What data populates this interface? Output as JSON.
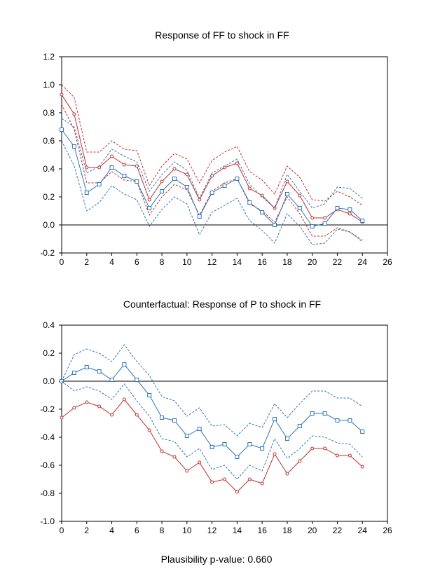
{
  "chart_data": [
    {
      "type": "line",
      "title": "Response of FF to shock in FF",
      "xlim": [
        0,
        26
      ],
      "ylim": [
        -0.2,
        1.2
      ],
      "xticks": [
        0,
        2,
        4,
        6,
        8,
        10,
        12,
        14,
        16,
        18,
        20,
        22,
        24,
        26
      ],
      "yticks": [
        -0.2,
        0.0,
        0.2,
        0.4,
        0.6,
        0.8,
        1.0,
        1.2
      ],
      "ytick_labels": [
        "-0.2",
        "0.0",
        "0.2",
        "0.4",
        "0.6",
        "0.8",
        "1.0",
        "1.2"
      ],
      "zero_line": true,
      "grid": false,
      "x": [
        0,
        1,
        2,
        3,
        4,
        5,
        6,
        7,
        8,
        9,
        10,
        11,
        12,
        13,
        14,
        15,
        16,
        17,
        18,
        19,
        20,
        21,
        22,
        23,
        24
      ],
      "series": [
        {
          "color": "#c0302e",
          "style": "dashed",
          "marker": "none",
          "values": [
            1.0,
            0.91,
            0.52,
            0.52,
            0.6,
            0.54,
            0.53,
            0.28,
            0.42,
            0.51,
            0.47,
            0.3,
            0.46,
            0.52,
            0.56,
            0.38,
            0.32,
            0.22,
            0.42,
            0.34,
            0.18,
            0.17,
            0.24,
            0.2,
            0.14
          ]
        },
        {
          "color": "#c0302e",
          "style": "solid",
          "marker": "circle",
          "values": [
            0.93,
            0.79,
            0.41,
            0.41,
            0.49,
            0.43,
            0.42,
            0.18,
            0.31,
            0.4,
            0.36,
            0.18,
            0.35,
            0.41,
            0.44,
            0.26,
            0.21,
            0.12,
            0.31,
            0.21,
            0.05,
            0.05,
            0.11,
            0.08,
            0.02
          ]
        },
        {
          "color": "#c0302e",
          "style": "dashed",
          "marker": "none",
          "values": [
            0.86,
            0.68,
            0.3,
            0.3,
            0.38,
            0.32,
            0.31,
            0.07,
            0.2,
            0.29,
            0.25,
            0.07,
            0.24,
            0.3,
            0.33,
            0.15,
            0.1,
            0.02,
            0.2,
            0.08,
            -0.08,
            -0.08,
            -0.02,
            -0.05,
            -0.11
          ]
        },
        {
          "color": "#2e75b6",
          "style": "dashed",
          "marker": "none",
          "values": [
            0.76,
            0.7,
            0.37,
            0.42,
            0.54,
            0.49,
            0.45,
            0.24,
            0.36,
            0.45,
            0.39,
            0.19,
            0.37,
            0.42,
            0.47,
            0.29,
            0.2,
            0.12,
            0.36,
            0.24,
            0.12,
            0.15,
            0.27,
            0.26,
            0.19
          ]
        },
        {
          "color": "#2e75b6",
          "style": "solid",
          "marker": "square",
          "values": [
            0.68,
            0.56,
            0.23,
            0.29,
            0.41,
            0.35,
            0.31,
            0.12,
            0.24,
            0.33,
            0.27,
            0.06,
            0.23,
            0.28,
            0.33,
            0.16,
            0.09,
            0.0,
            0.22,
            0.12,
            -0.01,
            0.01,
            0.12,
            0.11,
            0.03
          ]
        },
        {
          "color": "#2e75b6",
          "style": "dashed",
          "marker": "none",
          "values": [
            0.6,
            0.42,
            0.1,
            0.16,
            0.28,
            0.22,
            0.18,
            -0.01,
            0.11,
            0.2,
            0.15,
            -0.07,
            0.09,
            0.14,
            0.19,
            0.03,
            -0.04,
            -0.13,
            0.08,
            -0.01,
            -0.14,
            -0.13,
            -0.03,
            -0.05,
            -0.12
          ]
        }
      ]
    },
    {
      "type": "line",
      "title": "Counterfactual: Response of P to shock in FF",
      "xlim": [
        0,
        26
      ],
      "ylim": [
        -1.0,
        0.4
      ],
      "xticks": [
        0,
        2,
        4,
        6,
        8,
        10,
        12,
        14,
        16,
        18,
        20,
        22,
        24,
        26
      ],
      "yticks": [
        -1.0,
        -0.8,
        -0.6,
        -0.4,
        -0.2,
        0.0,
        0.2,
        0.4
      ],
      "ytick_labels": [
        "-1.0",
        "-0.8",
        "-0.6",
        "-0.4",
        "-0.2",
        "0.0",
        "0.2",
        "0.4"
      ],
      "zero_line": true,
      "grid": false,
      "x": [
        0,
        1,
        2,
        3,
        4,
        5,
        6,
        7,
        8,
        9,
        10,
        11,
        12,
        13,
        14,
        15,
        16,
        17,
        18,
        19,
        20,
        21,
        22,
        23,
        24
      ],
      "series": [
        {
          "color": "#2e75b6",
          "style": "dashed",
          "marker": "none",
          "values": [
            0.0,
            0.19,
            0.23,
            0.2,
            0.14,
            0.26,
            0.14,
            0.04,
            -0.11,
            -0.14,
            -0.25,
            -0.19,
            -0.32,
            -0.31,
            -0.39,
            -0.3,
            -0.33,
            -0.16,
            -0.26,
            -0.16,
            -0.07,
            -0.07,
            -0.12,
            -0.12,
            -0.18
          ]
        },
        {
          "color": "#2e75b6",
          "style": "solid",
          "marker": "square",
          "values": [
            0.0,
            0.06,
            0.1,
            0.07,
            0.01,
            0.12,
            0.01,
            -0.1,
            -0.26,
            -0.28,
            -0.39,
            -0.34,
            -0.47,
            -0.45,
            -0.54,
            -0.45,
            -0.48,
            -0.27,
            -0.41,
            -0.32,
            -0.23,
            -0.23,
            -0.28,
            -0.28,
            -0.36
          ]
        },
        {
          "color": "#2e75b6",
          "style": "dashed",
          "marker": "none",
          "values": [
            0.0,
            -0.07,
            -0.04,
            -0.07,
            -0.13,
            -0.02,
            -0.14,
            -0.25,
            -0.41,
            -0.43,
            -0.54,
            -0.48,
            -0.63,
            -0.6,
            -0.7,
            -0.6,
            -0.64,
            -0.41,
            -0.55,
            -0.48,
            -0.39,
            -0.4,
            -0.44,
            -0.45,
            -0.54
          ]
        },
        {
          "color": "#c0302e",
          "style": "solid",
          "marker": "circle",
          "values": [
            -0.26,
            -0.19,
            -0.15,
            -0.18,
            -0.24,
            -0.13,
            -0.24,
            -0.35,
            -0.5,
            -0.54,
            -0.64,
            -0.58,
            -0.72,
            -0.7,
            -0.79,
            -0.7,
            -0.73,
            -0.52,
            -0.66,
            -0.57,
            -0.48,
            -0.48,
            -0.53,
            -0.53,
            -0.61
          ]
        }
      ]
    }
  ],
  "footer": "Plausibility p-value: 0.660"
}
